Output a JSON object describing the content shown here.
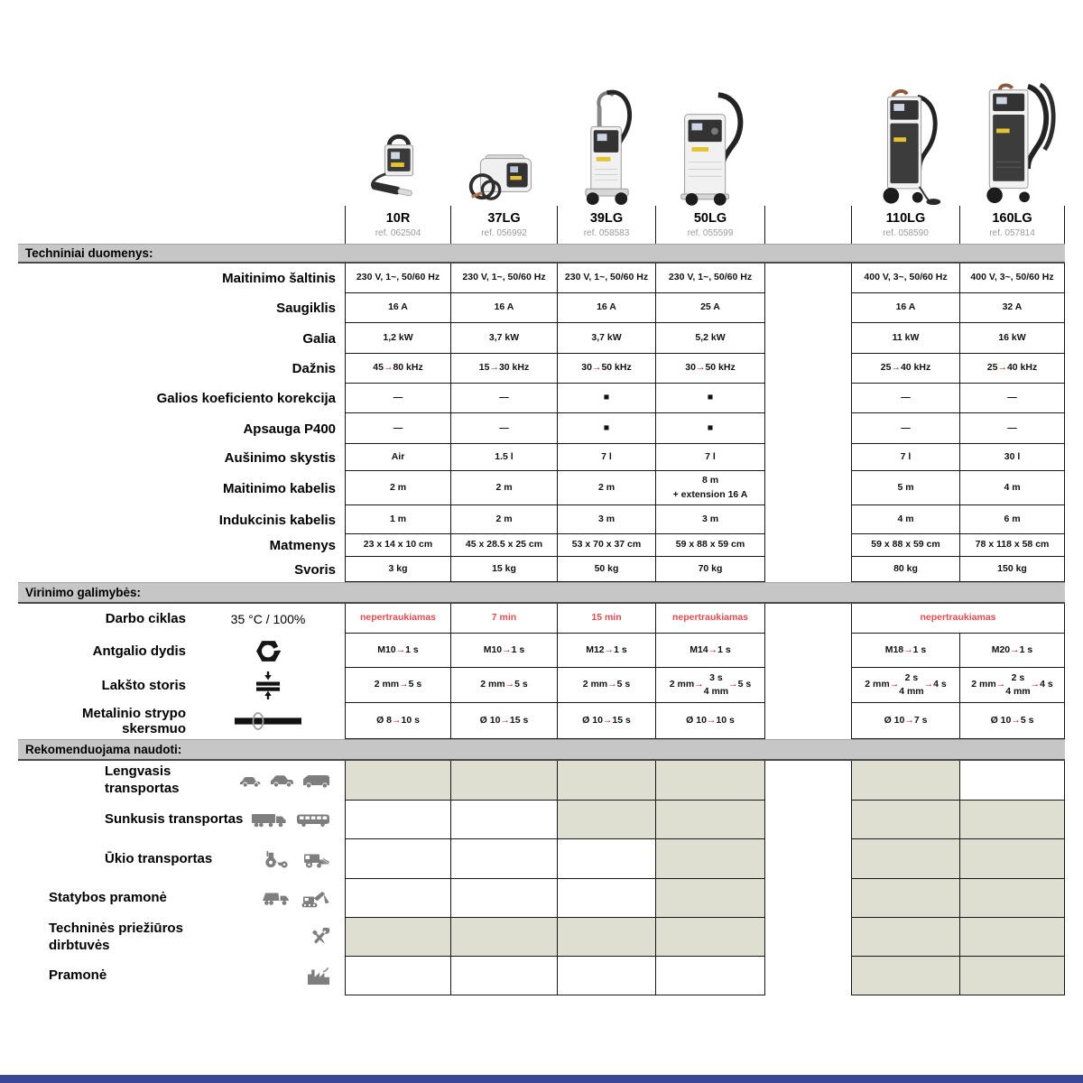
{
  "products": [
    {
      "name": "10R",
      "ref": "ref. 062504"
    },
    {
      "name": "37LG",
      "ref": "ref. 056992"
    },
    {
      "name": "39LG",
      "ref": "ref. 058583"
    },
    {
      "name": "50LG",
      "ref": "ref. 055599"
    },
    {
      "name": "110LG",
      "ref": "ref. 058590"
    },
    {
      "name": "160LG",
      "ref": "ref. 057814"
    }
  ],
  "tech": {
    "title": "Techniniai duomenys:",
    "rows": [
      {
        "label": "Maitinimo šaltinis",
        "values": [
          "230 V, 1~, 50/60 Hz",
          "230 V, 1~, 50/60 Hz",
          "230 V, 1~, 50/60 Hz",
          "230 V, 1~, 50/60 Hz",
          "400 V, 3~, 50/60 Hz",
          "400 V, 3~, 50/60 Hz"
        ]
      },
      {
        "label": "Saugiklis",
        "values": [
          "16 A",
          "16 A",
          "16 A",
          "25 A",
          "16 A",
          "32 A"
        ]
      },
      {
        "label": "Galia",
        "values": [
          "1,2 kW",
          "3,7  kW",
          "3,7  kW",
          "5,2  kW",
          "11 kW",
          "16 kW"
        ]
      },
      {
        "label": "Dažnis",
        "values": [
          "45 → 80 kHz",
          "15 → 30 kHz",
          "30 → 50 kHz",
          "30 → 50 kHz",
          "25 → 40 kHz",
          "25 → 40 kHz"
        ]
      },
      {
        "label": "Galios koeficiento korekcija",
        "values": [
          "—",
          "—",
          "■",
          "■",
          "—",
          "—"
        ]
      },
      {
        "label": "Apsauga P400",
        "values": [
          "—",
          "—",
          "■",
          "■",
          "—",
          "—"
        ]
      },
      {
        "label": "Aušinimo skystis",
        "values": [
          "Air",
          "1.5 l",
          "7 l",
          "7 l",
          "7 l",
          "30 l"
        ]
      },
      {
        "label": "Maitinimo kabelis",
        "values": [
          "2 m",
          "2 m",
          "2 m",
          "8 m\n+ extension 16 A",
          "5 m",
          "4 m"
        ]
      },
      {
        "label": "Indukcinis kabelis",
        "values": [
          "1 m",
          "2 m",
          "3 m",
          "3 m",
          "4 m",
          "6 m"
        ]
      },
      {
        "label": "Matmenys",
        "values": [
          "23 x 14 x 10 cm",
          "45 x 28.5 x 25 cm",
          "53 x 70 x 37 cm",
          "59 x 88 x 59 cm",
          "59 x 88 x 59 cm",
          "78 x 118 x 58 cm"
        ]
      },
      {
        "label": "Svoris",
        "values": [
          "3 kg",
          "15 kg",
          "50 kg",
          "70 kg",
          "80 kg",
          "150 kg"
        ]
      }
    ]
  },
  "weld": {
    "title": "Virinimo galimybės:",
    "duty": {
      "label": "Darbo ciklas",
      "condition": "35 °C / 100%",
      "values": [
        "nepertraukiamas",
        "7 min",
        "15 min",
        "nepertraukiamas"
      ],
      "value_wide": "nepertraukiamas"
    },
    "rows": [
      {
        "label": "Antgalio dydis",
        "icon": "nut-icon",
        "values": [
          "M10 → 1 s",
          "M10 → 1 s",
          "M12 → 1 s",
          "M14 →  1 s",
          "M18 → 1 s",
          "M20 → 1 s"
        ]
      },
      {
        "label": "Lakšto storis",
        "icon": "sheet-thickness-icon",
        "values": [
          "2 mm → 5 s",
          "2 mm → 5 s",
          "2 mm → 5 s",
          "2 mm → 3 s\n4 mm → 5 s",
          "2 mm → 2 s\n4 mm → 4 s",
          "2 mm → 2 s\n4 mm → 4 s"
        ]
      },
      {
        "label": "Metalinio strypo skersmuo",
        "icon": "metal-rod-icon",
        "values": [
          "Ø 8 → 10 s",
          "Ø 10 → 15 s",
          "Ø 10 → 15 s",
          "Ø 10 → 10 s",
          "Ø 10 → 7 s",
          "Ø 10 → 5 s"
        ]
      }
    ]
  },
  "reco": {
    "title": "Rekomenduojama naudoti:",
    "rows": [
      {
        "label": "Lengvasis transportas",
        "icons": [
          "car-icon",
          "suv-icon",
          "van-icon"
        ],
        "cells": [
          true,
          true,
          true,
          true,
          true,
          false
        ]
      },
      {
        "label": "Sunkusis transportas",
        "icons": [
          "truck-icon",
          "bus-icon"
        ],
        "cells": [
          false,
          false,
          true,
          true,
          true,
          true
        ]
      },
      {
        "label": "Ūkio transportas",
        "icons": [
          "tractor-icon",
          "harvester-icon"
        ],
        "cells": [
          false,
          false,
          false,
          true,
          true,
          true
        ]
      },
      {
        "label": "Statybos pramonė",
        "icons": [
          "dump-truck-icon",
          "excavator-icon"
        ],
        "cells": [
          false,
          false,
          false,
          true,
          true,
          true
        ]
      },
      {
        "label": "Techninės priežiūros\ndirbtuvės",
        "icons": [
          "tools-icon"
        ],
        "cells": [
          true,
          true,
          true,
          true,
          true,
          true
        ]
      },
      {
        "label": "Pramonė",
        "icons": [
          "factory-icon"
        ],
        "cells": [
          false,
          false,
          false,
          false,
          true,
          true
        ]
      }
    ]
  },
  "colors": {
    "accent_red": "#ea4a4f",
    "arrow_red": "#bf1d20",
    "section_bar_gray": "#c6c6c6",
    "recommended_cell_fill": "#dfdfd1",
    "footer_blue": "#3a4795"
  }
}
